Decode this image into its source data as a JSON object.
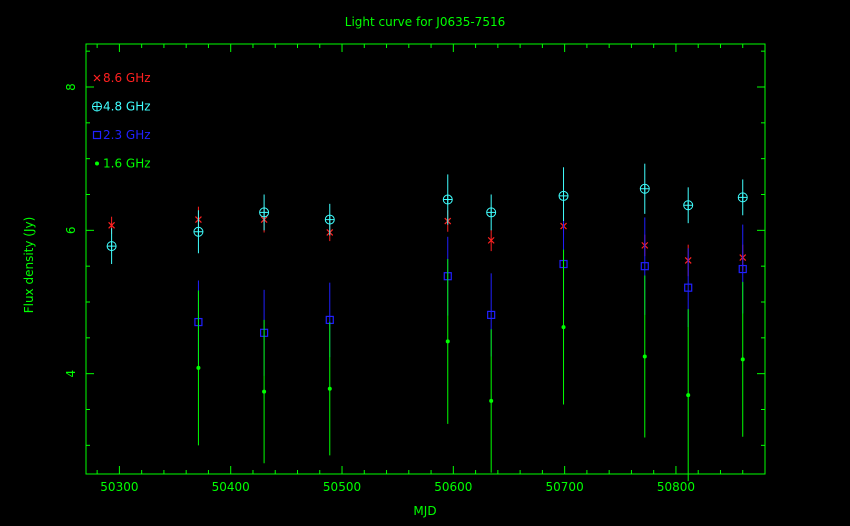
{
  "chart_data": {
    "type": "scatter",
    "title": "Light curve for J0635-7516",
    "xlabel": "MJD",
    "ylabel": "Flux density (Jy)",
    "xlim": [
      50270,
      50880
    ],
    "ylim": [
      2.6,
      8.6
    ],
    "x_ticks": [
      50300,
      50400,
      50500,
      50600,
      50700,
      50800
    ],
    "y_ticks": [
      4,
      6,
      8
    ],
    "grid": false,
    "legend_placement": "top-left",
    "colors": {
      "background": "#000000",
      "frame": "#00ff00",
      "text": "#00ff00",
      "title": "#00ff00"
    },
    "series": [
      {
        "name": "8.6 GHz",
        "marker": "x",
        "color": "#ff2020",
        "points": [
          {
            "x": 50293,
            "y": 6.07,
            "err": 0.12
          },
          {
            "x": 50371,
            "y": 6.15,
            "err": 0.18
          },
          {
            "x": 50430,
            "y": 6.15,
            "err": 0.18
          },
          {
            "x": 50489,
            "y": 5.97,
            "err": 0.12
          },
          {
            "x": 50595,
            "y": 6.13,
            "err": 0.15
          },
          {
            "x": 50634,
            "y": 5.86,
            "err": 0.15
          },
          {
            "x": 50699,
            "y": 6.06,
            "err": 0.12
          },
          {
            "x": 50772,
            "y": 5.79,
            "err": 0.15
          },
          {
            "x": 50811,
            "y": 5.58,
            "err": 0.22
          },
          {
            "x": 50860,
            "y": 5.62,
            "err": 0.18
          }
        ]
      },
      {
        "name": "4.8 GHz",
        "marker": "circle-plus",
        "color": "#40ffff",
        "points": [
          {
            "x": 50293,
            "y": 5.78,
            "err": 0.25
          },
          {
            "x": 50371,
            "y": 5.98,
            "err": 0.3
          },
          {
            "x": 50430,
            "y": 6.25,
            "err": 0.25
          },
          {
            "x": 50489,
            "y": 6.15,
            "err": 0.22
          },
          {
            "x": 50595,
            "y": 6.43,
            "err": 0.35
          },
          {
            "x": 50634,
            "y": 6.25,
            "err": 0.25
          },
          {
            "x": 50699,
            "y": 6.48,
            "err": 0.4
          },
          {
            "x": 50772,
            "y": 6.58,
            "err": 0.35
          },
          {
            "x": 50811,
            "y": 6.35,
            "err": 0.25
          },
          {
            "x": 50860,
            "y": 6.46,
            "err": 0.25
          }
        ]
      },
      {
        "name": "2.3 GHz",
        "marker": "square",
        "color": "#2020ff",
        "points": [
          {
            "x": 50371,
            "y": 4.72,
            "err": 0.58
          },
          {
            "x": 50430,
            "y": 4.57,
            "err": 0.6
          },
          {
            "x": 50489,
            "y": 4.75,
            "err": 0.52
          },
          {
            "x": 50595,
            "y": 5.36,
            "err": 0.55
          },
          {
            "x": 50634,
            "y": 4.82,
            "err": 0.58
          },
          {
            "x": 50699,
            "y": 5.53,
            "err": 0.6
          },
          {
            "x": 50772,
            "y": 5.5,
            "err": 0.68
          },
          {
            "x": 50811,
            "y": 5.2,
            "err": 0.55
          },
          {
            "x": 50860,
            "y": 5.46,
            "err": 0.62
          }
        ]
      },
      {
        "name": "1.6 GHz",
        "marker": "dot",
        "color": "#00ff00",
        "points": [
          {
            "x": 50371,
            "y": 4.08,
            "err": 1.08
          },
          {
            "x": 50430,
            "y": 3.75,
            "err": 1.0
          },
          {
            "x": 50489,
            "y": 3.79,
            "err": 0.93
          },
          {
            "x": 50595,
            "y": 4.45,
            "err": 1.15
          },
          {
            "x": 50634,
            "y": 3.62,
            "err": 1.0
          },
          {
            "x": 50699,
            "y": 4.65,
            "err": 1.08
          },
          {
            "x": 50772,
            "y": 4.24,
            "err": 1.13
          },
          {
            "x": 50811,
            "y": 3.7,
            "err": 1.2
          },
          {
            "x": 50860,
            "y": 4.2,
            "err": 1.08
          }
        ]
      }
    ]
  }
}
